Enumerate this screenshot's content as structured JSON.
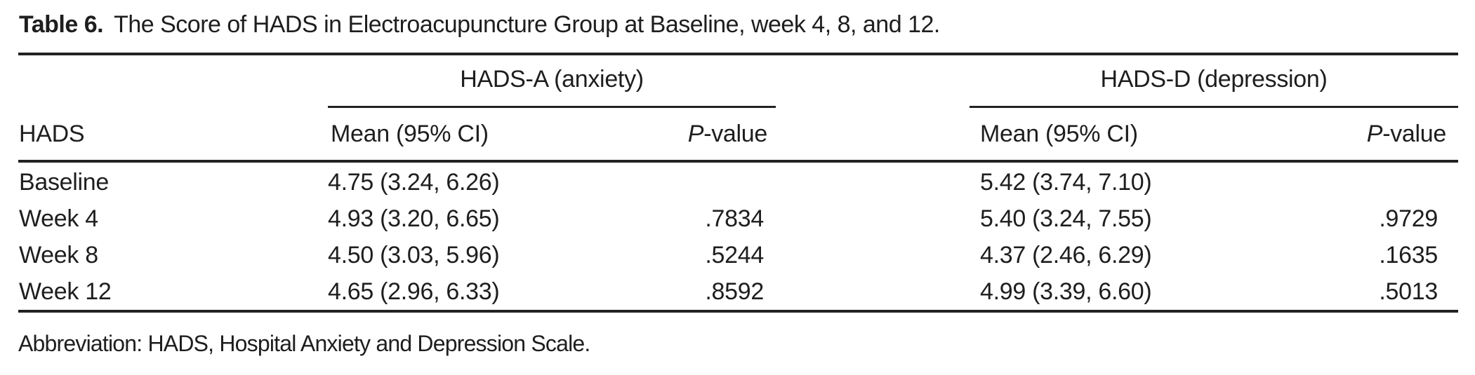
{
  "page": {
    "background": "#ffffff",
    "text_color": "#1e1e1e",
    "rule_color": "#222222"
  },
  "title": {
    "label": "Table 6.",
    "text": "The Score of HADS in Electroacupuncture Group at Baseline, week 4, 8, and 12."
  },
  "table": {
    "stub_header": "HADS",
    "p_header": {
      "italic": "P",
      "rest": "-value"
    },
    "groups": [
      {
        "label": "HADS-A (anxiety)",
        "mean_header": "Mean (95% CI)"
      },
      {
        "label": "HADS-D (depression)",
        "mean_header": "Mean (95% CI)"
      }
    ],
    "rows": [
      {
        "label": "Baseline",
        "hads_a_mean": "4.75 (3.24, 6.26)",
        "hads_a_p": "",
        "hads_d_mean": "5.42 (3.74, 7.10)",
        "hads_d_p": ""
      },
      {
        "label": "Week 4",
        "hads_a_mean": "4.93 (3.20, 6.65)",
        "hads_a_p": ".7834",
        "hads_d_mean": "5.40 (3.24, 7.55)",
        "hads_d_p": ".9729"
      },
      {
        "label": "Week 8",
        "hads_a_mean": "4.50 (3.03, 5.96)",
        "hads_a_p": ".5244",
        "hads_d_mean": "4.37 (2.46, 6.29)",
        "hads_d_p": ".1635"
      },
      {
        "label": "Week 12",
        "hads_a_mean": "4.65 (2.96, 6.33)",
        "hads_a_p": ".8592",
        "hads_d_mean": "4.99 (3.39, 6.60)",
        "hads_d_p": ".5013"
      }
    ]
  },
  "footnote": "Abbreviation: HADS, Hospital Anxiety and Depression Scale."
}
